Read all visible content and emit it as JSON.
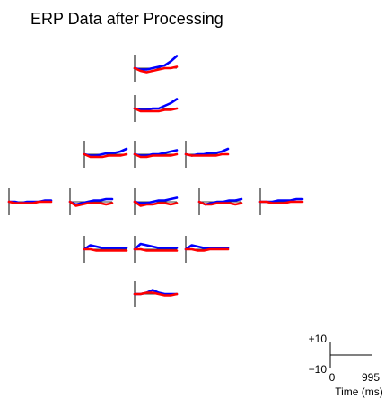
{
  "title": "ERP Data after Processing",
  "x": [
    0,
    142,
    284,
    426,
    568,
    710,
    852,
    995
  ],
  "xlim": [
    0,
    995
  ],
  "ylim": [
    -10,
    10
  ],
  "xticks": [
    0,
    995
  ],
  "yticks": [
    {
      "value": 10,
      "label": "+10"
    },
    {
      "value": -10,
      "label": "−10"
    }
  ],
  "xlabel": "Time (ms)",
  "chart_data": [
    {
      "type": "line",
      "series": [
        {
          "color": "#0000ff",
          "values": [
            0,
            -1,
            -1,
            0,
            1,
            2,
            5,
            9
          ]
        },
        {
          "color": "#ff0000",
          "values": [
            0,
            -2,
            -3,
            -2,
            -1,
            0,
            0,
            1
          ]
        }
      ]
    },
    {
      "type": "line",
      "series": [
        {
          "color": "#0000ff",
          "values": [
            0,
            -1,
            -1,
            0,
            0,
            2,
            4,
            7
          ]
        },
        {
          "color": "#ff0000",
          "values": [
            0,
            -2,
            -2,
            -2,
            -2,
            -1,
            -1,
            0
          ]
        }
      ]
    },
    {
      "type": "line",
      "series": [
        {
          "color": "#0000ff",
          "values": [
            0,
            -1,
            -1,
            0,
            1,
            1,
            2,
            4
          ]
        },
        {
          "color": "#ff0000",
          "values": [
            0,
            -2,
            -2,
            -2,
            -1,
            -1,
            -1,
            0
          ]
        }
      ]
    },
    {
      "type": "line",
      "series": [
        {
          "color": "#0000ff",
          "values": [
            0,
            -1,
            -1,
            0,
            0,
            1,
            2,
            3
          ]
        },
        {
          "color": "#ff0000",
          "values": [
            0,
            -2,
            -2,
            -1,
            -1,
            -1,
            -1,
            0
          ]
        }
      ]
    },
    {
      "type": "line",
      "series": [
        {
          "color": "#0000ff",
          "values": [
            0,
            -1,
            0,
            0,
            1,
            1,
            2,
            4
          ]
        },
        {
          "color": "#ff0000",
          "values": [
            0,
            -1,
            -1,
            -1,
            -1,
            -1,
            0,
            0
          ]
        }
      ]
    },
    {
      "type": "line",
      "series": [
        {
          "color": "#0000ff",
          "values": [
            0,
            0,
            -1,
            0,
            0,
            0,
            1,
            1
          ]
        },
        {
          "color": "#ff0000",
          "values": [
            0,
            -1,
            -1,
            -1,
            -1,
            0,
            0,
            0
          ]
        }
      ]
    },
    {
      "type": "line",
      "series": [
        {
          "color": "#0000ff",
          "values": [
            0,
            -2,
            -1,
            0,
            1,
            1,
            2,
            2
          ]
        },
        {
          "color": "#ff0000",
          "values": [
            0,
            -3,
            -2,
            -1,
            -1,
            -1,
            -2,
            -1
          ]
        }
      ]
    },
    {
      "type": "line",
      "series": [
        {
          "color": "#0000ff",
          "values": [
            0,
            -1,
            -1,
            0,
            1,
            1,
            2,
            3
          ]
        },
        {
          "color": "#ff0000",
          "values": [
            0,
            -3,
            -2,
            -2,
            -1,
            -1,
            -2,
            -1
          ]
        }
      ]
    },
    {
      "type": "line",
      "series": [
        {
          "color": "#0000ff",
          "values": [
            0,
            -2,
            -1,
            0,
            0,
            1,
            1,
            2
          ]
        },
        {
          "color": "#ff0000",
          "values": [
            0,
            -2,
            -2,
            -1,
            -1,
            -1,
            -2,
            -1
          ]
        }
      ]
    },
    {
      "type": "line",
      "series": [
        {
          "color": "#0000ff",
          "values": [
            0,
            0,
            0,
            1,
            1,
            1,
            2,
            2
          ]
        },
        {
          "color": "#ff0000",
          "values": [
            0,
            0,
            -1,
            -1,
            -1,
            0,
            0,
            0
          ]
        }
      ]
    },
    {
      "type": "line",
      "series": [
        {
          "color": "#0000ff",
          "values": [
            0,
            3,
            2,
            1,
            1,
            1,
            1,
            1
          ]
        },
        {
          "color": "#ff0000",
          "values": [
            0,
            0,
            -1,
            -1,
            -1,
            -1,
            -1,
            -1
          ]
        }
      ]
    },
    {
      "type": "line",
      "series": [
        {
          "color": "#0000ff",
          "values": [
            0,
            4,
            3,
            2,
            1,
            1,
            1,
            1
          ]
        },
        {
          "color": "#ff0000",
          "values": [
            0,
            0,
            -1,
            -1,
            -1,
            -1,
            -1,
            -1
          ]
        }
      ]
    },
    {
      "type": "line",
      "series": [
        {
          "color": "#0000ff",
          "values": [
            0,
            3,
            2,
            1,
            1,
            1,
            1,
            1
          ]
        },
        {
          "color": "#ff0000",
          "values": [
            0,
            0,
            -1,
            -1,
            0,
            0,
            0,
            0
          ]
        }
      ]
    },
    {
      "type": "line",
      "series": [
        {
          "color": "#0000ff",
          "values": [
            0,
            0,
            1,
            3,
            1,
            0,
            0,
            0
          ]
        },
        {
          "color": "#ff0000",
          "values": [
            0,
            0,
            1,
            1,
            0,
            -1,
            -1,
            0
          ]
        }
      ]
    }
  ]
}
